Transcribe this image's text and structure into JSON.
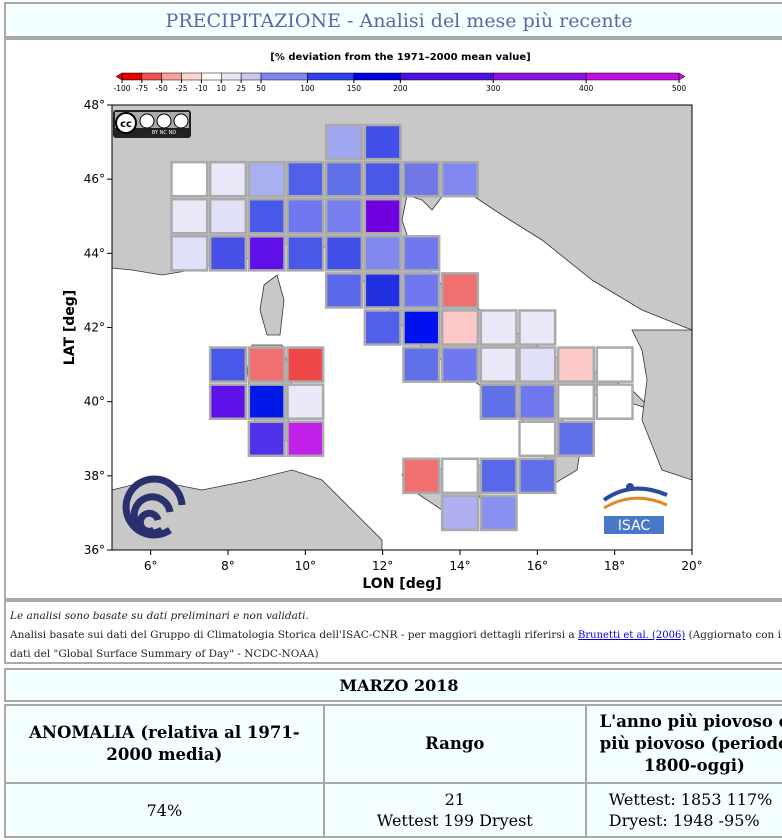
{
  "header": {
    "title": "PRECIPITAZIONE - Analisi del mese più recente"
  },
  "map": {
    "colorbar": {
      "title": "[% deviation from the 1971–2000 mean value]",
      "ticks": [
        -100,
        -75,
        -50,
        -25,
        -10,
        10,
        25,
        50,
        100,
        150,
        200,
        300,
        400,
        500
      ],
      "colors": [
        "#e00000",
        "#f05050",
        "#f8a0a0",
        "#fcd4d4",
        "#ffffff",
        "#e8e8f8",
        "#c8c8f0",
        "#8088f0",
        "#3040e8",
        "#0000d8",
        "#5010e0",
        "#8c10e0",
        "#c010e0"
      ]
    },
    "xlabel": "LON [deg]",
    "ylabel": "LAT [deg]",
    "xlim": [
      5,
      20
    ],
    "ylim": [
      36,
      48
    ],
    "xticks": [
      {
        "value": 6,
        "label": "6°"
      },
      {
        "value": 8,
        "label": "8°"
      },
      {
        "value": 10,
        "label": "10°"
      },
      {
        "value": 12,
        "label": "12°"
      },
      {
        "value": 14,
        "label": "14°"
      },
      {
        "value": 16,
        "label": "16°"
      },
      {
        "value": 18,
        "label": "18°"
      },
      {
        "value": 20,
        "label": "20°"
      }
    ],
    "yticks": [
      {
        "value": 36,
        "label": "36°"
      },
      {
        "value": 38,
        "label": "38°"
      },
      {
        "value": 40,
        "label": "40°"
      },
      {
        "value": 42,
        "label": "42°"
      },
      {
        "value": 44,
        "label": "44°"
      },
      {
        "value": 46,
        "label": "46°"
      },
      {
        "value": 48,
        "label": "48°"
      }
    ],
    "cells": [
      {
        "lon": 11,
        "lat": 47,
        "color": "#a0a8f0"
      },
      {
        "lon": 12,
        "lat": 47,
        "color": "#4050e8"
      },
      {
        "lon": 7,
        "lat": 46,
        "color": "#ffffff"
      },
      {
        "lon": 8,
        "lat": 46,
        "color": "#e8e8f8"
      },
      {
        "lon": 9,
        "lat": 46,
        "color": "#a8b0f0"
      },
      {
        "lon": 10,
        "lat": 46,
        "color": "#5060e8"
      },
      {
        "lon": 11,
        "lat": 46,
        "color": "#6070e8"
      },
      {
        "lon": 12,
        "lat": 46,
        "color": "#4a58e8"
      },
      {
        "lon": 13,
        "lat": 46,
        "color": "#7078e8"
      },
      {
        "lon": 14,
        "lat": 46,
        "color": "#8088f0"
      },
      {
        "lon": 7,
        "lat": 45,
        "color": "#e8e8f8"
      },
      {
        "lon": 8,
        "lat": 45,
        "color": "#e0e0f8"
      },
      {
        "lon": 9,
        "lat": 45,
        "color": "#4858e8"
      },
      {
        "lon": 10,
        "lat": 45,
        "color": "#7078f0"
      },
      {
        "lon": 11,
        "lat": 45,
        "color": "#7880f0"
      },
      {
        "lon": 12,
        "lat": 45,
        "color": "#7000e0"
      },
      {
        "lon": 7,
        "lat": 44,
        "color": "#e0e0f8"
      },
      {
        "lon": 8,
        "lat": 44,
        "color": "#4850e8"
      },
      {
        "lon": 9,
        "lat": 44,
        "color": "#6010e8"
      },
      {
        "lon": 10,
        "lat": 44,
        "color": "#4a58e8"
      },
      {
        "lon": 11,
        "lat": 44,
        "color": "#4050e8"
      },
      {
        "lon": 12,
        "lat": 44,
        "color": "#8088f0"
      },
      {
        "lon": 13,
        "lat": 44,
        "color": "#7078f0"
      },
      {
        "lon": 11,
        "lat": 43,
        "color": "#5868e8"
      },
      {
        "lon": 12,
        "lat": 43,
        "color": "#2030e0"
      },
      {
        "lon": 13,
        "lat": 43,
        "color": "#7078f0"
      },
      {
        "lon": 14,
        "lat": 43,
        "color": "#f07070"
      },
      {
        "lon": 12,
        "lat": 42,
        "color": "#5060e8"
      },
      {
        "lon": 13,
        "lat": 42,
        "color": "#0010f0"
      },
      {
        "lon": 14,
        "lat": 42,
        "color": "#fcc8c8"
      },
      {
        "lon": 15,
        "lat": 42,
        "color": "#e8e8f8"
      },
      {
        "lon": 16,
        "lat": 42,
        "color": "#e8e8f8"
      },
      {
        "lon": 8,
        "lat": 41,
        "color": "#4858e8"
      },
      {
        "lon": 9,
        "lat": 41,
        "color": "#f07070"
      },
      {
        "lon": 10,
        "lat": 41,
        "color": "#f04848"
      },
      {
        "lon": 13,
        "lat": 41,
        "color": "#6070e8"
      },
      {
        "lon": 14,
        "lat": 41,
        "color": "#7078f0"
      },
      {
        "lon": 15,
        "lat": 41,
        "color": "#e8e8f8"
      },
      {
        "lon": 16,
        "lat": 41,
        "color": "#e0e0f8"
      },
      {
        "lon": 17,
        "lat": 41,
        "color": "#fcc8c8"
      },
      {
        "lon": 18,
        "lat": 41,
        "color": "#ffffff"
      },
      {
        "lon": 8,
        "lat": 40,
        "color": "#6010e8"
      },
      {
        "lon": 9,
        "lat": 40,
        "color": "#0018e8"
      },
      {
        "lon": 10,
        "lat": 40,
        "color": "#e8e8f8"
      },
      {
        "lon": 15,
        "lat": 40,
        "color": "#6070e8"
      },
      {
        "lon": 16,
        "lat": 40,
        "color": "#7078f0"
      },
      {
        "lon": 17,
        "lat": 40,
        "color": "#ffffff"
      },
      {
        "lon": 18,
        "lat": 40,
        "color": "#ffffff"
      },
      {
        "lon": 9,
        "lat": 39,
        "color": "#5030e8"
      },
      {
        "lon": 10,
        "lat": 39,
        "color": "#c020e8"
      },
      {
        "lon": 16,
        "lat": 39,
        "color": "#ffffff"
      },
      {
        "lon": 17,
        "lat": 39,
        "color": "#6070e8"
      },
      {
        "lon": 13,
        "lat": 38,
        "color": "#f07070"
      },
      {
        "lon": 14,
        "lat": 38,
        "color": "#ffffff"
      },
      {
        "lon": 15,
        "lat": 38,
        "color": "#5868e8"
      },
      {
        "lon": 16,
        "lat": 38,
        "color": "#6070e8"
      },
      {
        "lon": 14,
        "lat": 37,
        "color": "#b0b0f0"
      },
      {
        "lon": 15,
        "lat": 37,
        "color": "#8890f0"
      }
    ],
    "cc_badge": {
      "cc": "cc",
      "terms": "BY NC ND"
    },
    "isac_logo": "ISAC"
  },
  "notes": {
    "line1": "Le analisi sono basate su dati preliminari e non validati.",
    "prefix": "Analisi basate sui dati del Gruppo di Climatologia Storica dell'ISAC-CNR - per maggiori dettagli riferirsi a ",
    "link": "Brunetti et al. (2006)",
    "suffix": " (Aggiornato con i dati del \"Global Surface Summary of Day\" - NCDC-NOAA)"
  },
  "table": {
    "month": "MARZO 2018",
    "headers": [
      "ANOMALIA (relativa al 1971-2000 media)",
      "Rango",
      "L'anno più piovoso e più piovoso (periodo 1800-oggi)"
    ],
    "row": [
      [
        "74%"
      ],
      [
        "21",
        "Wettest 199 Dryest"
      ],
      [
        "Wettest: 1853 117%",
        "Dryest: 1948 -95%"
      ]
    ]
  }
}
